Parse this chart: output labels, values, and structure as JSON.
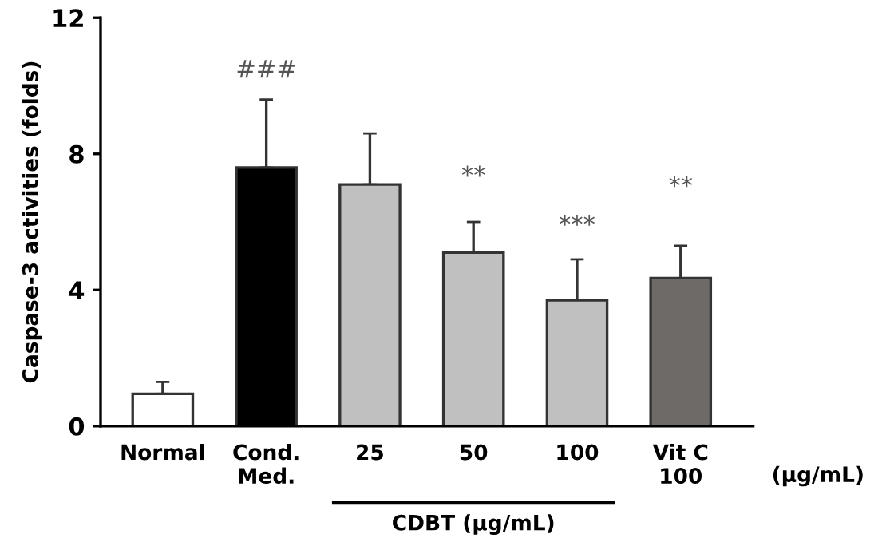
{
  "chart_data": {
    "type": "bar",
    "ylabel": "Caspase-3 activities (folds)",
    "categories": [
      "Normal",
      "Cond.\nMed.",
      "25",
      "50",
      "100",
      "Vit C\n100"
    ],
    "values": [
      0.95,
      7.6,
      7.1,
      5.1,
      3.7,
      4.35
    ],
    "colors": [
      "#ffffff",
      "#000000",
      "#c0c0c0",
      "#c0c0c0",
      "#c0c0c0",
      "#6e6a68"
    ],
    "errors": [
      [
        0.95,
        1.3
      ],
      [
        7.6,
        9.6
      ],
      [
        7.1,
        8.6
      ],
      [
        5.1,
        6.0
      ],
      [
        3.7,
        4.9
      ],
      [
        4.35,
        5.3
      ]
    ],
    "ylim": [
      0,
      12
    ],
    "yticks": [
      0,
      4,
      8,
      12
    ],
    "grid": false,
    "annotations": [
      "###",
      "**",
      "***",
      "**",
      "(µg/mL)",
      "CDBT (µg/mL)"
    ]
  }
}
